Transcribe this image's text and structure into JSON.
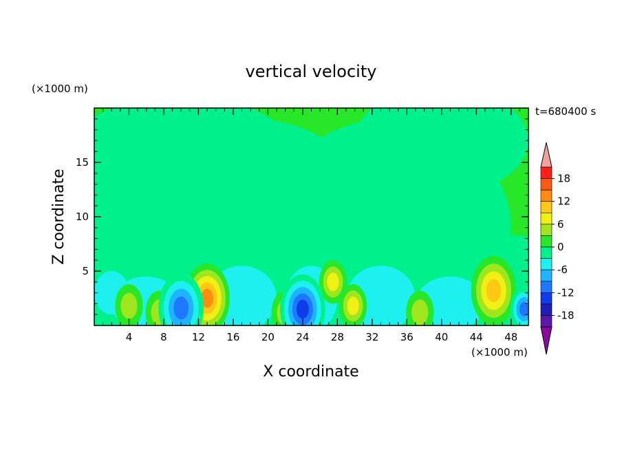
{
  "chart_data": {
    "type": "heatmap",
    "title": "vertical velocity",
    "xlabel": "X coordinate",
    "ylabel": "Z coordinate",
    "x_unit": "(×1000 m)",
    "y_unit": "(×1000 m)",
    "time_label": "t=680400 s",
    "xlim": [
      0,
      50
    ],
    "ylim": [
      0,
      20
    ],
    "x_ticks": [
      "4",
      "8",
      "12",
      "16",
      "20",
      "24",
      "28",
      "32",
      "36",
      "40",
      "44",
      "48"
    ],
    "y_ticks": [
      "5",
      "10",
      "15"
    ],
    "colorbar": {
      "levels": [
        -21,
        -18,
        -15,
        -12,
        -9,
        -6,
        -3,
        0,
        3,
        6,
        9,
        12,
        15,
        18,
        21
      ],
      "tick_labels": [
        "18",
        "12",
        "6",
        "0",
        "-6",
        "-12",
        "-18"
      ],
      "colors": [
        "#8a0aa0",
        "#5a1aa8",
        "#1e1eb4",
        "#0f3ce6",
        "#1e78ff",
        "#1eb4ff",
        "#1ef0f0",
        "#00f08c",
        "#28e628",
        "#a0e61e",
        "#f0f014",
        "#ffc814",
        "#ff8c0f",
        "#ff5a14",
        "#ff1e1e",
        "#f5a0a0"
      ]
    },
    "grid": false,
    "legend": "colorbar-right",
    "field_description_features": [
      {
        "x": 13,
        "z": 2.5,
        "peak": 15
      },
      {
        "x": 4,
        "z": 1.8,
        "peak": 6
      },
      {
        "x": 7.5,
        "z": 1.2,
        "peak": 5
      },
      {
        "x": 22,
        "z": 1.2,
        "peak": 6
      },
      {
        "x": 27.5,
        "z": 4,
        "peak": 8
      },
      {
        "x": 29.8,
        "z": 1.8,
        "peak": 9
      },
      {
        "x": 37.5,
        "z": 1.2,
        "peak": 5
      },
      {
        "x": 46,
        "z": 3.2,
        "peak": 11
      },
      {
        "x": 10,
        "z": 1.6,
        "peak": -12
      },
      {
        "x": 24,
        "z": 1.5,
        "peak": -14
      },
      {
        "x": 49.5,
        "z": 1.5,
        "peak": -10
      }
    ]
  }
}
